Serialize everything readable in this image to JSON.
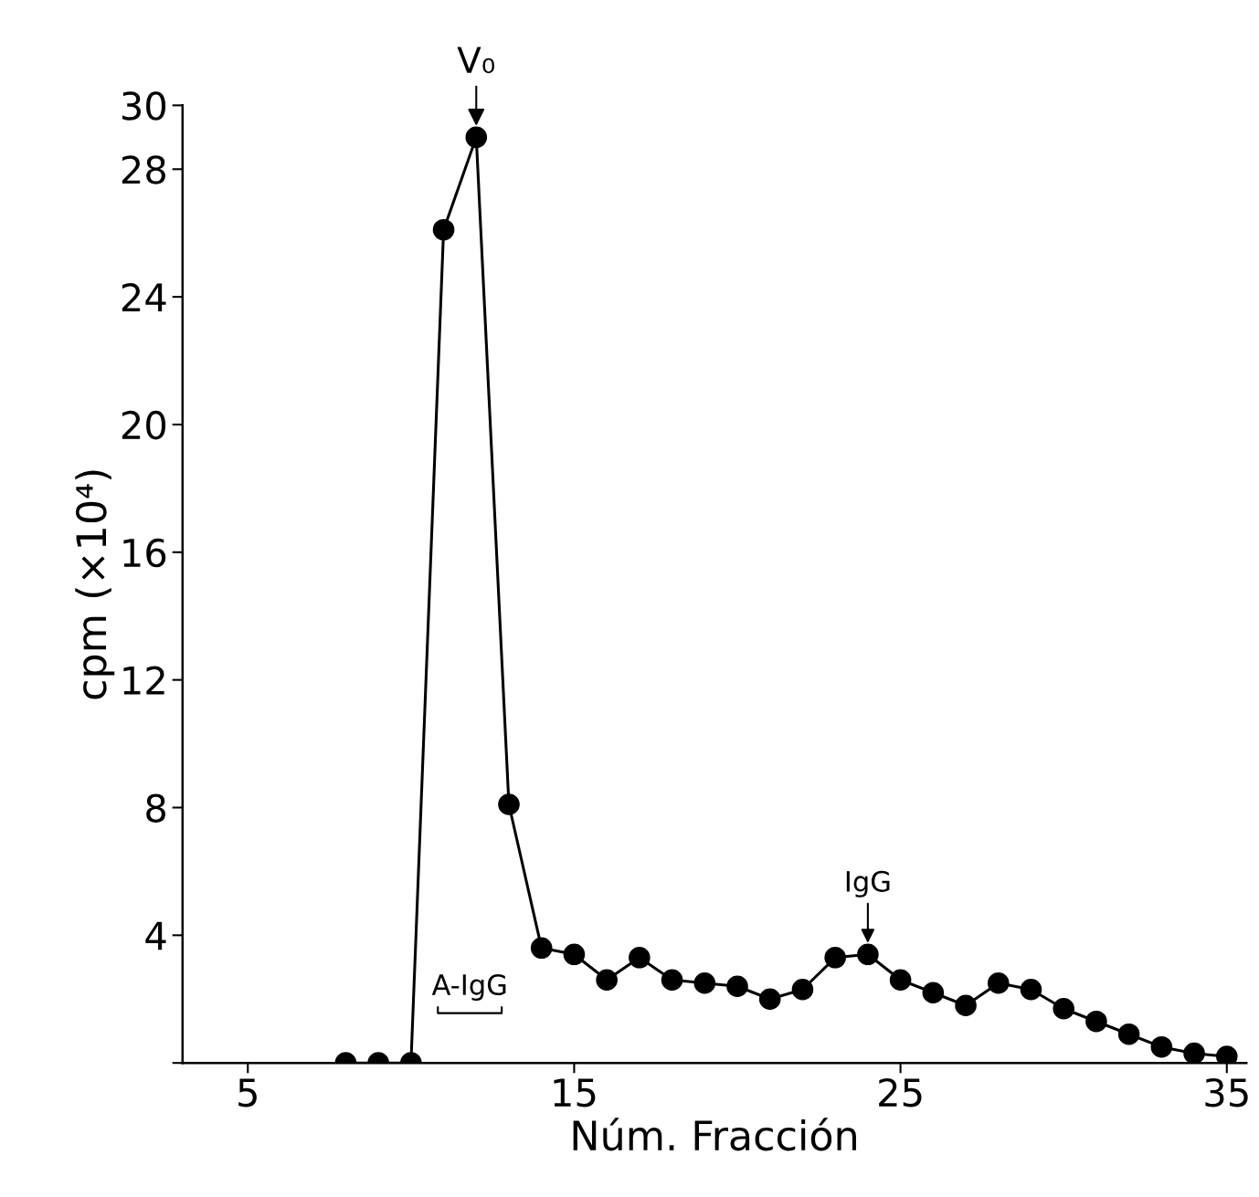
{
  "chart_data": {
    "type": "line",
    "xlabel": "Núm. Fracción",
    "ylabel": "cpm (×10⁴)",
    "x": [
      8,
      9,
      10,
      11,
      12,
      13,
      14,
      15,
      16,
      17,
      18,
      19,
      20,
      21,
      22,
      23,
      24,
      25,
      26,
      27,
      28,
      29,
      30,
      31,
      32,
      33,
      34,
      35
    ],
    "series": [
      {
        "color": "#000000",
        "values": [
          0,
          0,
          0,
          26.1,
          29.0,
          8.1,
          3.6,
          3.4,
          2.6,
          3.3,
          2.6,
          2.5,
          2.4,
          2.0,
          2.3,
          3.3,
          3.4,
          2.6,
          2.2,
          1.8,
          2.5,
          2.3,
          1.7,
          1.3,
          0.9,
          0.5,
          0.3,
          0.2
        ]
      }
    ],
    "xlim": [
      3,
      35.6
    ],
    "ylim": [
      0,
      30
    ],
    "xticks": [
      5,
      15,
      25,
      35
    ],
    "yticks": [
      {
        "value": 0,
        "label": null
      },
      4,
      8,
      12,
      16,
      20,
      24,
      28,
      30
    ],
    "marker": "circle",
    "line_style": "solid",
    "grid": false,
    "legend": false,
    "annotations": [
      {
        "text": "V₀",
        "x": 12,
        "y": 29.0
      },
      {
        "text": "IgG",
        "x": 24,
        "y": 3.4
      },
      "A-IgG"
    ]
  }
}
